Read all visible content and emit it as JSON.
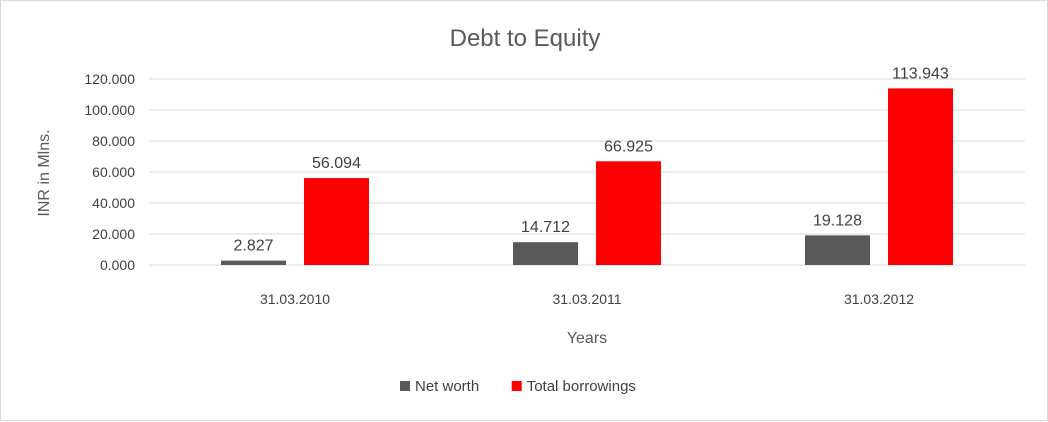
{
  "chart_data": {
    "type": "bar",
    "title": "Debt to Equity",
    "xlabel": "Years",
    "ylabel": "INR in Mlns.",
    "categories": [
      "31.03.2010",
      "31.03.2011",
      "31.03.2012"
    ],
    "series": [
      {
        "name": "Net worth",
        "color": "#595959",
        "values": [
          2.827,
          14.712,
          19.128
        ],
        "labels": [
          "2.827",
          "14.712",
          "19.128"
        ]
      },
      {
        "name": "Total borrowings",
        "color": "#ff0000",
        "values": [
          56.094,
          66.925,
          113.943
        ],
        "labels": [
          "56.094",
          "66.925",
          "113.943"
        ]
      }
    ],
    "ylim": [
      0,
      120
    ],
    "yticks": [
      "0.000",
      "20.000",
      "40.000",
      "60.000",
      "80.000",
      "100.000",
      "120.000"
    ],
    "grid": true,
    "legend": "bottom"
  }
}
